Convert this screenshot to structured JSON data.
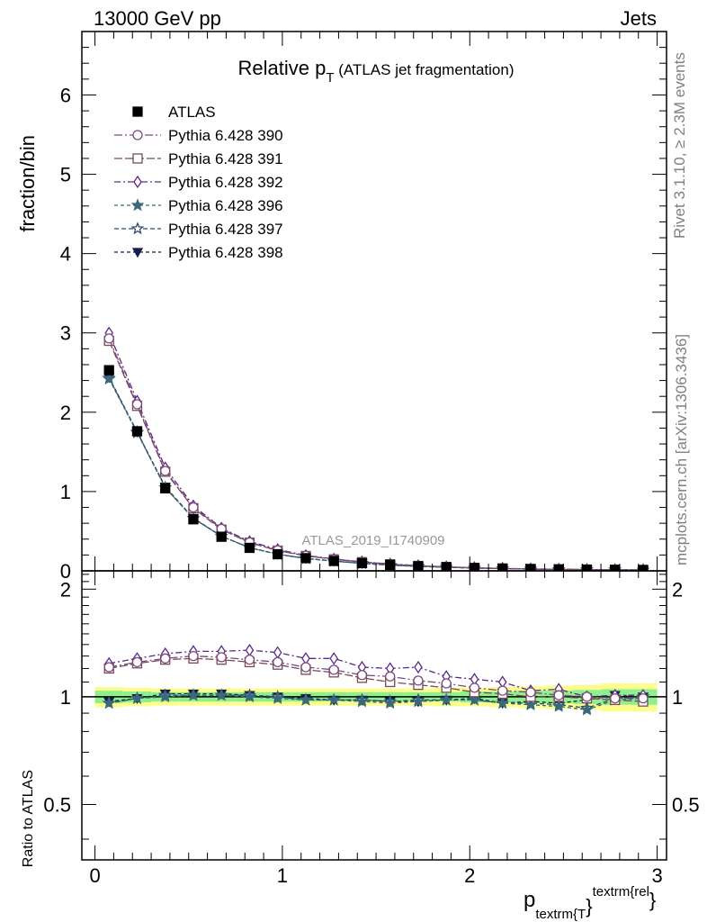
{
  "header": {
    "left": "13000 GeV pp",
    "right": "Jets"
  },
  "side_labels": {
    "rivet": "Rivet 3.1.10, ≥ 2.3M events",
    "mcplots": "mcplots.cern.ch [arXiv:1306.3436]"
  },
  "watermark": "ATLAS_2019_I1740909",
  "chart_data": [
    {
      "type": "line",
      "title_main": "Relative p",
      "title_sub": "T",
      "title_rest": " (ATLAS jet fragmentation)",
      "ylabel": "fraction/bin",
      "xlim": [
        -0.07,
        3.05
      ],
      "ylim": [
        0,
        6.8
      ],
      "yticks": [
        0,
        1,
        2,
        3,
        4,
        5,
        6
      ],
      "xticks": [
        0,
        1,
        2,
        3
      ],
      "legend_position": "top-left",
      "x": [
        0.075,
        0.225,
        0.375,
        0.525,
        0.675,
        0.825,
        0.975,
        1.125,
        1.275,
        1.425,
        1.575,
        1.725,
        1.875,
        2.025,
        2.175,
        2.325,
        2.475,
        2.625,
        2.775,
        2.925
      ],
      "series": [
        {
          "name": "ATLAS",
          "color": "#000000",
          "marker": "square-filled",
          "dash": "none",
          "values": [
            2.53,
            1.76,
            1.04,
            0.65,
            0.43,
            0.29,
            0.21,
            0.16,
            0.125,
            0.097,
            0.075,
            0.058,
            0.046,
            0.036,
            0.029,
            0.023,
            0.019,
            0.016,
            0.013,
            0.011
          ]
        },
        {
          "name": "Pythia 6.428 390",
          "color": "#7b4a7e",
          "marker": "circle-open",
          "dash": "9,3,2,3",
          "values": [
            2.93,
            2.1,
            1.26,
            0.8,
            0.53,
            0.36,
            0.26,
            0.19,
            0.147,
            0.112,
            0.085,
            0.064,
            0.05,
            0.038,
            0.03,
            0.024,
            0.019,
            0.016,
            0.013,
            0.011
          ]
        },
        {
          "name": "Pythia 6.428 391",
          "color": "#7b4a55",
          "marker": "square-open",
          "dash": "9,3",
          "values": [
            2.9,
            2.08,
            1.25,
            0.79,
            0.52,
            0.355,
            0.255,
            0.188,
            0.145,
            0.11,
            0.083,
            0.062,
            0.049,
            0.037,
            0.029,
            0.023,
            0.019,
            0.016,
            0.013,
            0.011
          ]
        },
        {
          "name": "Pythia 6.428 392",
          "color": "#5a2a8a",
          "marker": "diamond-open",
          "dash": "7,3,2,3",
          "values": [
            3.0,
            2.14,
            1.3,
            0.82,
            0.54,
            0.37,
            0.27,
            0.195,
            0.15,
            0.114,
            0.087,
            0.066,
            0.051,
            0.039,
            0.031,
            0.024,
            0.02,
            0.016,
            0.013,
            0.011
          ]
        },
        {
          "name": "Pythia 6.428 396",
          "color": "#3a6a7a",
          "marker": "star-filled",
          "dash": "4,3",
          "values": [
            2.42,
            1.74,
            1.05,
            0.66,
            0.435,
            0.292,
            0.208,
            0.156,
            0.122,
            0.094,
            0.072,
            0.056,
            0.045,
            0.035,
            0.028,
            0.022,
            0.018,
            0.015,
            0.013,
            0.011
          ]
        },
        {
          "name": "Pythia 6.428 397",
          "color": "#2d4a6e",
          "marker": "star-open",
          "dash": "5,3",
          "values": [
            2.43,
            1.75,
            1.05,
            0.66,
            0.437,
            0.293,
            0.209,
            0.157,
            0.123,
            0.095,
            0.073,
            0.057,
            0.045,
            0.035,
            0.028,
            0.022,
            0.018,
            0.015,
            0.013,
            0.011
          ]
        },
        {
          "name": "Pythia 6.428 398",
          "color": "#141e46",
          "marker": "triangle-down-filled",
          "dash": "4,3",
          "values": [
            2.44,
            1.75,
            1.06,
            0.665,
            0.437,
            0.293,
            0.21,
            0.157,
            0.123,
            0.095,
            0.073,
            0.057,
            0.045,
            0.035,
            0.028,
            0.022,
            0.018,
            0.015,
            0.013,
            0.011
          ]
        }
      ]
    },
    {
      "type": "line",
      "ylabel": "Ratio to ATLAS",
      "xlabel_main": "p",
      "xlabel_sub": "textrm{T",
      "xlabel_brace": "}",
      "xlabel_sup": "textrm{rel",
      "xlabel_end": "}",
      "xlim": [
        -0.07,
        3.05
      ],
      "ylim": [
        0.35,
        2.25
      ],
      "yticks": [
        0.5,
        1,
        2
      ],
      "ytick_labels": [
        "0.5",
        "1",
        "2"
      ],
      "xticks": [
        0,
        1,
        2,
        3
      ],
      "reference_line": 1.0,
      "band_inner": [
        0.04,
        0.035,
        0.03,
        0.03,
        0.03,
        0.03,
        0.03,
        0.03,
        0.03,
        0.03,
        0.03,
        0.03,
        0.03,
        0.035,
        0.035,
        0.04,
        0.04,
        0.045,
        0.05,
        0.05
      ],
      "band_outer": [
        0.065,
        0.06,
        0.055,
        0.055,
        0.055,
        0.055,
        0.055,
        0.055,
        0.055,
        0.055,
        0.055,
        0.055,
        0.06,
        0.06,
        0.065,
        0.07,
        0.075,
        0.08,
        0.09,
        0.09
      ],
      "series": [
        {
          "name": "Pythia 6.428 390",
          "values": [
            1.21,
            1.25,
            1.28,
            1.3,
            1.29,
            1.27,
            1.25,
            1.21,
            1.19,
            1.15,
            1.14,
            1.11,
            1.09,
            1.06,
            1.04,
            1.03,
            1.01,
            1.0,
            0.99,
            0.99
          ]
        },
        {
          "name": "Pythia 6.428 391",
          "values": [
            1.2,
            1.24,
            1.27,
            1.28,
            1.27,
            1.25,
            1.23,
            1.19,
            1.17,
            1.13,
            1.1,
            1.08,
            1.06,
            1.03,
            1.02,
            1.0,
            1.0,
            0.99,
            0.98,
            0.97
          ]
        },
        {
          "name": "Pythia 6.428 392",
          "values": [
            1.24,
            1.28,
            1.32,
            1.34,
            1.34,
            1.35,
            1.33,
            1.28,
            1.28,
            1.21,
            1.2,
            1.21,
            1.14,
            1.12,
            1.1,
            1.04,
            1.05,
            1.0,
            1.01,
            1.01
          ]
        },
        {
          "name": "Pythia 6.428 396",
          "values": [
            0.96,
            0.99,
            1.0,
            1.01,
            1.01,
            1.0,
            0.99,
            0.98,
            0.98,
            0.97,
            0.96,
            0.97,
            0.98,
            0.98,
            0.96,
            0.95,
            0.94,
            0.92,
            0.98,
            0.99
          ]
        },
        {
          "name": "Pythia 6.428 397",
          "values": [
            0.96,
            0.99,
            1.01,
            1.01,
            1.01,
            1.01,
            1.0,
            0.98,
            0.98,
            0.98,
            0.97,
            0.98,
            0.98,
            0.98,
            0.96,
            0.96,
            0.95,
            0.93,
            0.99,
            1.0
          ]
        },
        {
          "name": "Pythia 6.428 398",
          "values": [
            0.97,
            0.99,
            1.02,
            1.02,
            1.02,
            1.01,
            1.0,
            0.99,
            0.98,
            0.98,
            0.97,
            0.97,
            0.98,
            0.99,
            0.96,
            0.97,
            0.96,
            0.98,
            1.01,
            1.0
          ]
        }
      ]
    }
  ]
}
